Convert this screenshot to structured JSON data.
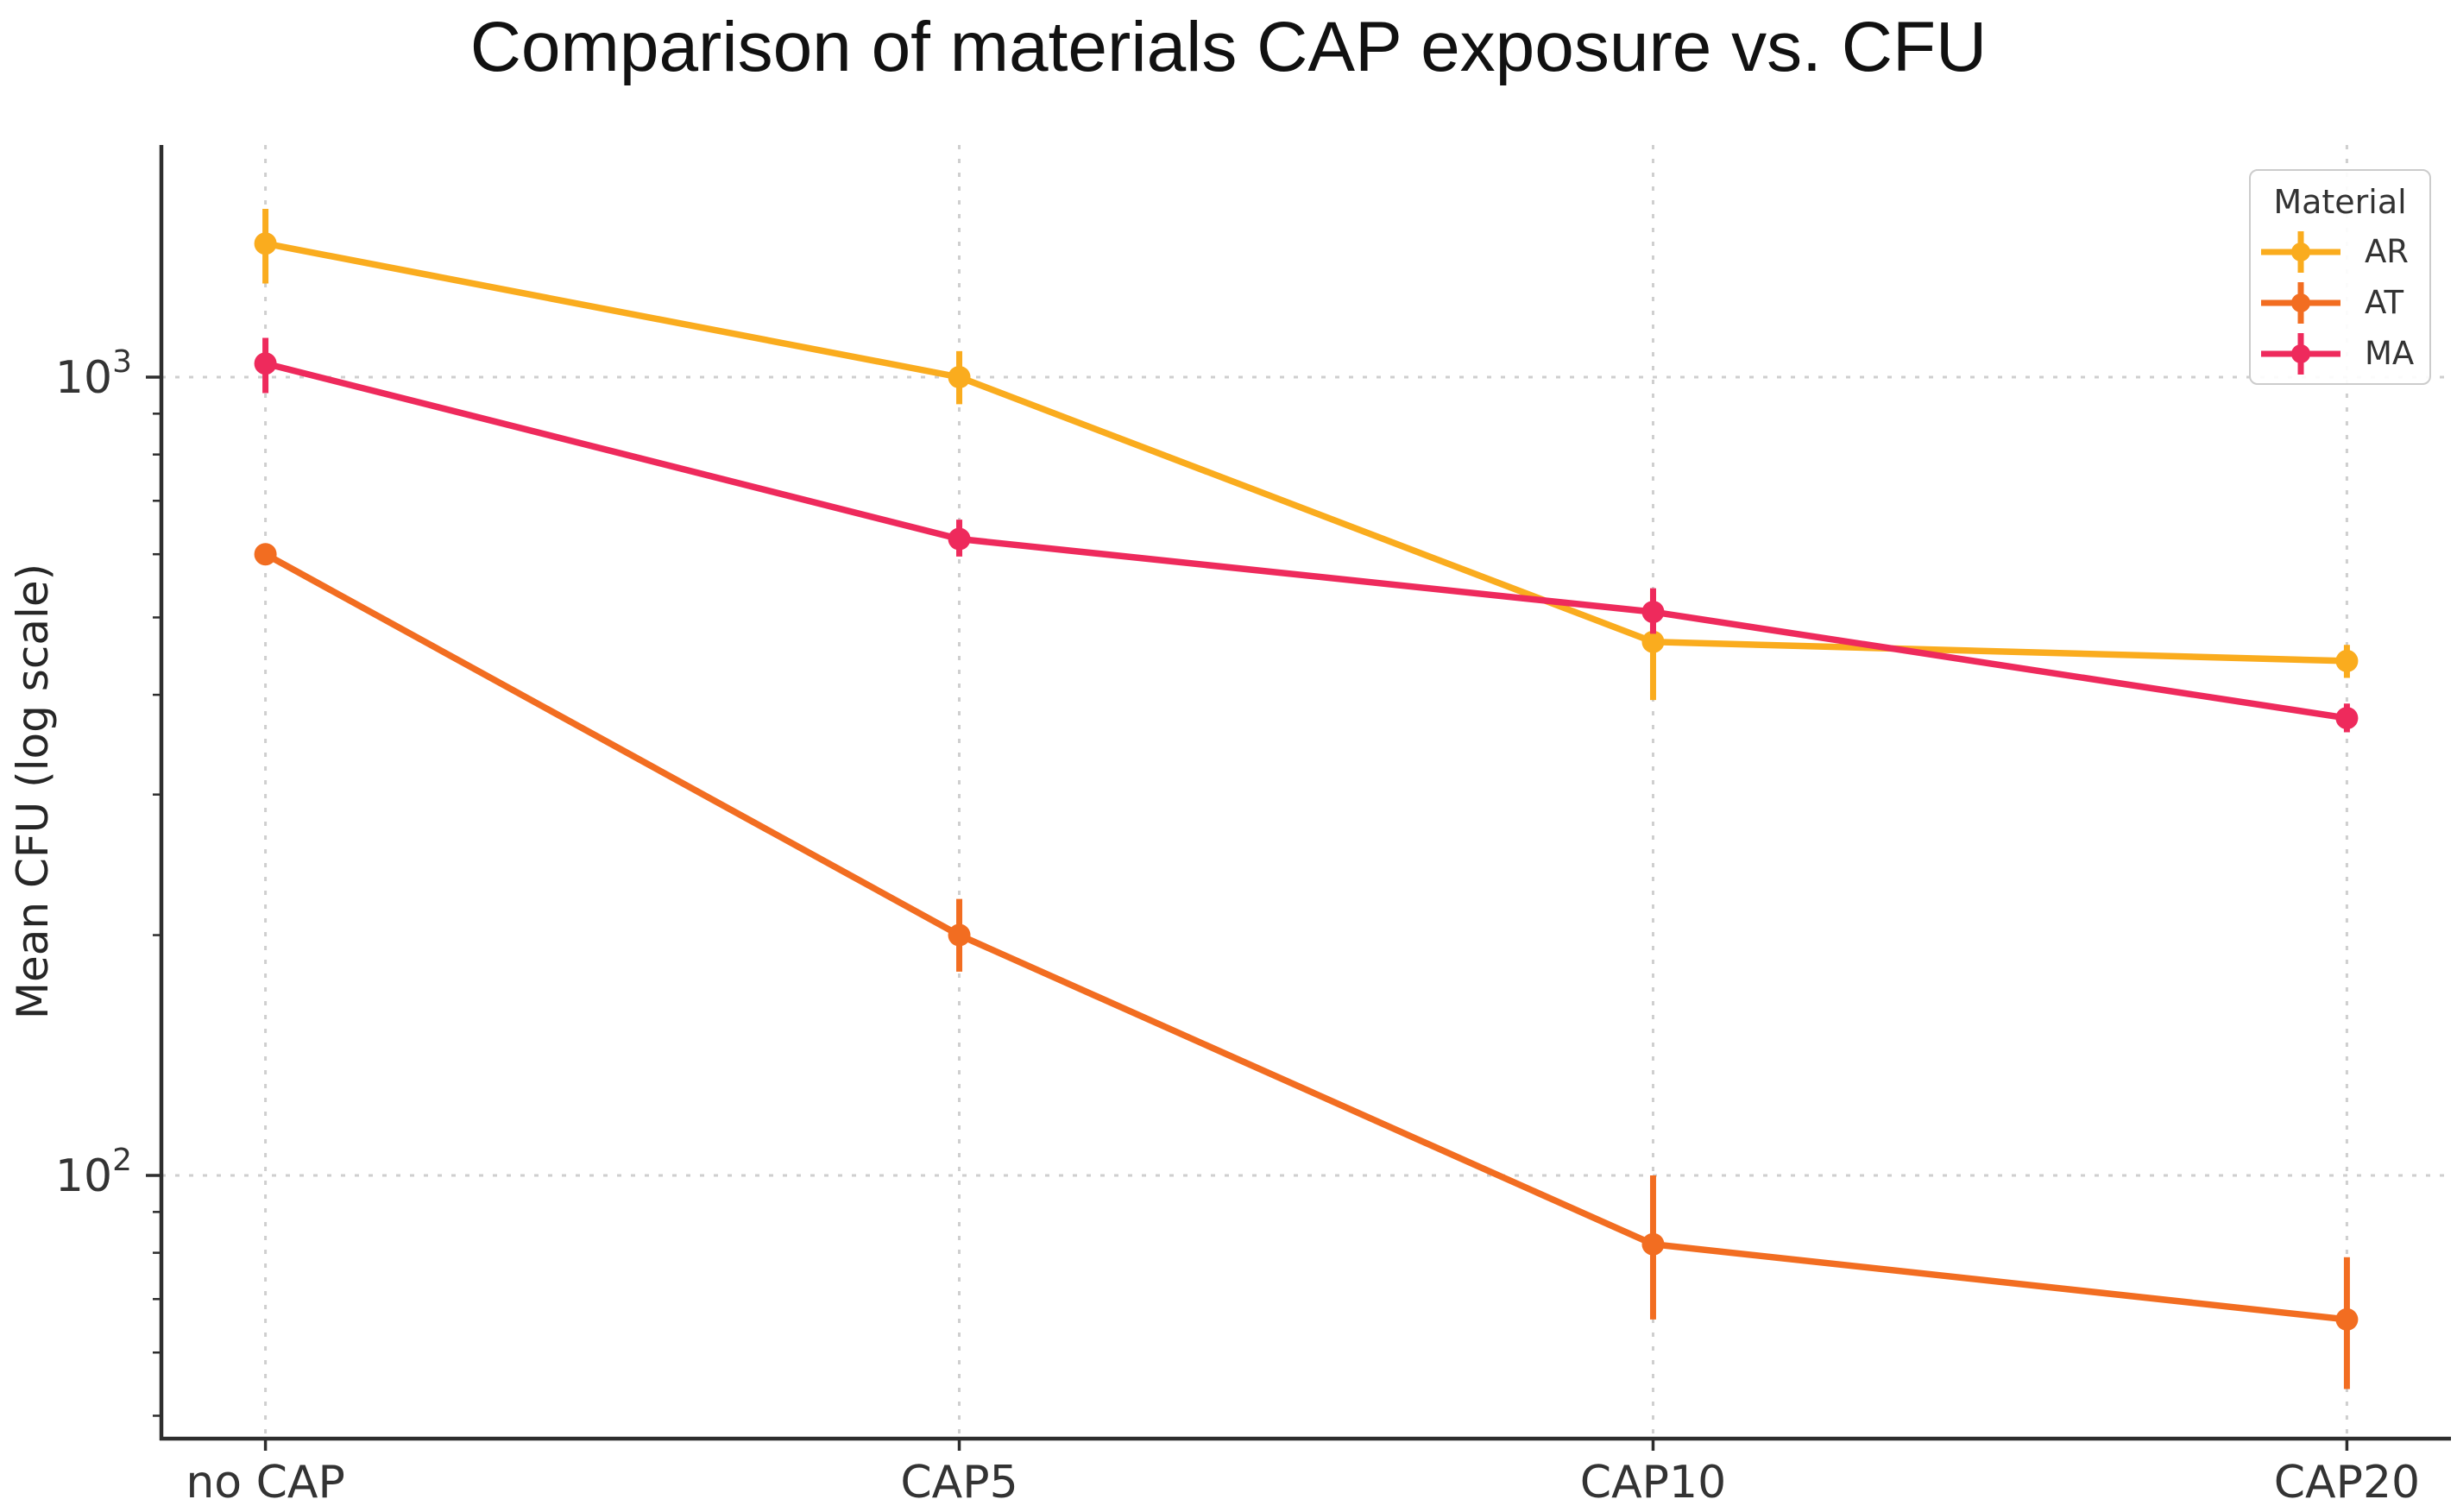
{
  "figure": {
    "background": "#ffffff"
  },
  "chart_data": {
    "type": "line",
    "title": "Comparison of materials CAP exposure vs. CFU",
    "xlabel": "",
    "ylabel": "Mean CFU (log scale)",
    "yscale": "log",
    "ylim": [
      47,
      1950
    ],
    "categories": [
      "no CAP",
      "CAP5",
      "CAP10",
      "CAP20"
    ],
    "series": [
      {
        "name": "AR",
        "color": "#FAAC1E",
        "values": [
          1470,
          1000,
          466,
          441
        ],
        "err_lo": [
          1310,
          925,
          394,
          420
        ],
        "err_hi": [
          1625,
          1078,
          541,
          462
        ]
      },
      {
        "name": "AT",
        "color": "#F26D21",
        "values": [
          600,
          200,
          82,
          66
        ],
        "err_lo": [
          585,
          180,
          66,
          54
        ],
        "err_hi": [
          615,
          222,
          100,
          79
        ]
      },
      {
        "name": "MA",
        "color": "#EE2A5C",
        "values": [
          1040,
          627,
          508,
          374
        ],
        "err_lo": [
          955,
          596,
          477,
          359
        ],
        "err_hi": [
          1120,
          663,
          544,
          390
        ]
      }
    ],
    "yticks_major": [
      100,
      1000
    ],
    "ytick_label_base": "10",
    "ytick_label_exponents": [
      "2",
      "3"
    ],
    "marker": "circle",
    "error_bars": true,
    "grid": {
      "which": "major",
      "style": "dashed",
      "color": "#cfcfcf"
    },
    "legend": {
      "title": "Material",
      "entries": [
        "AR",
        "AT",
        "MA"
      ],
      "position": "upper right"
    }
  },
  "colors": {
    "spine": "#2e2e2e",
    "tick_label": "#333333",
    "title_text": "#111111",
    "grid": "#cfcfcf",
    "legend_border": "#cccccc"
  }
}
